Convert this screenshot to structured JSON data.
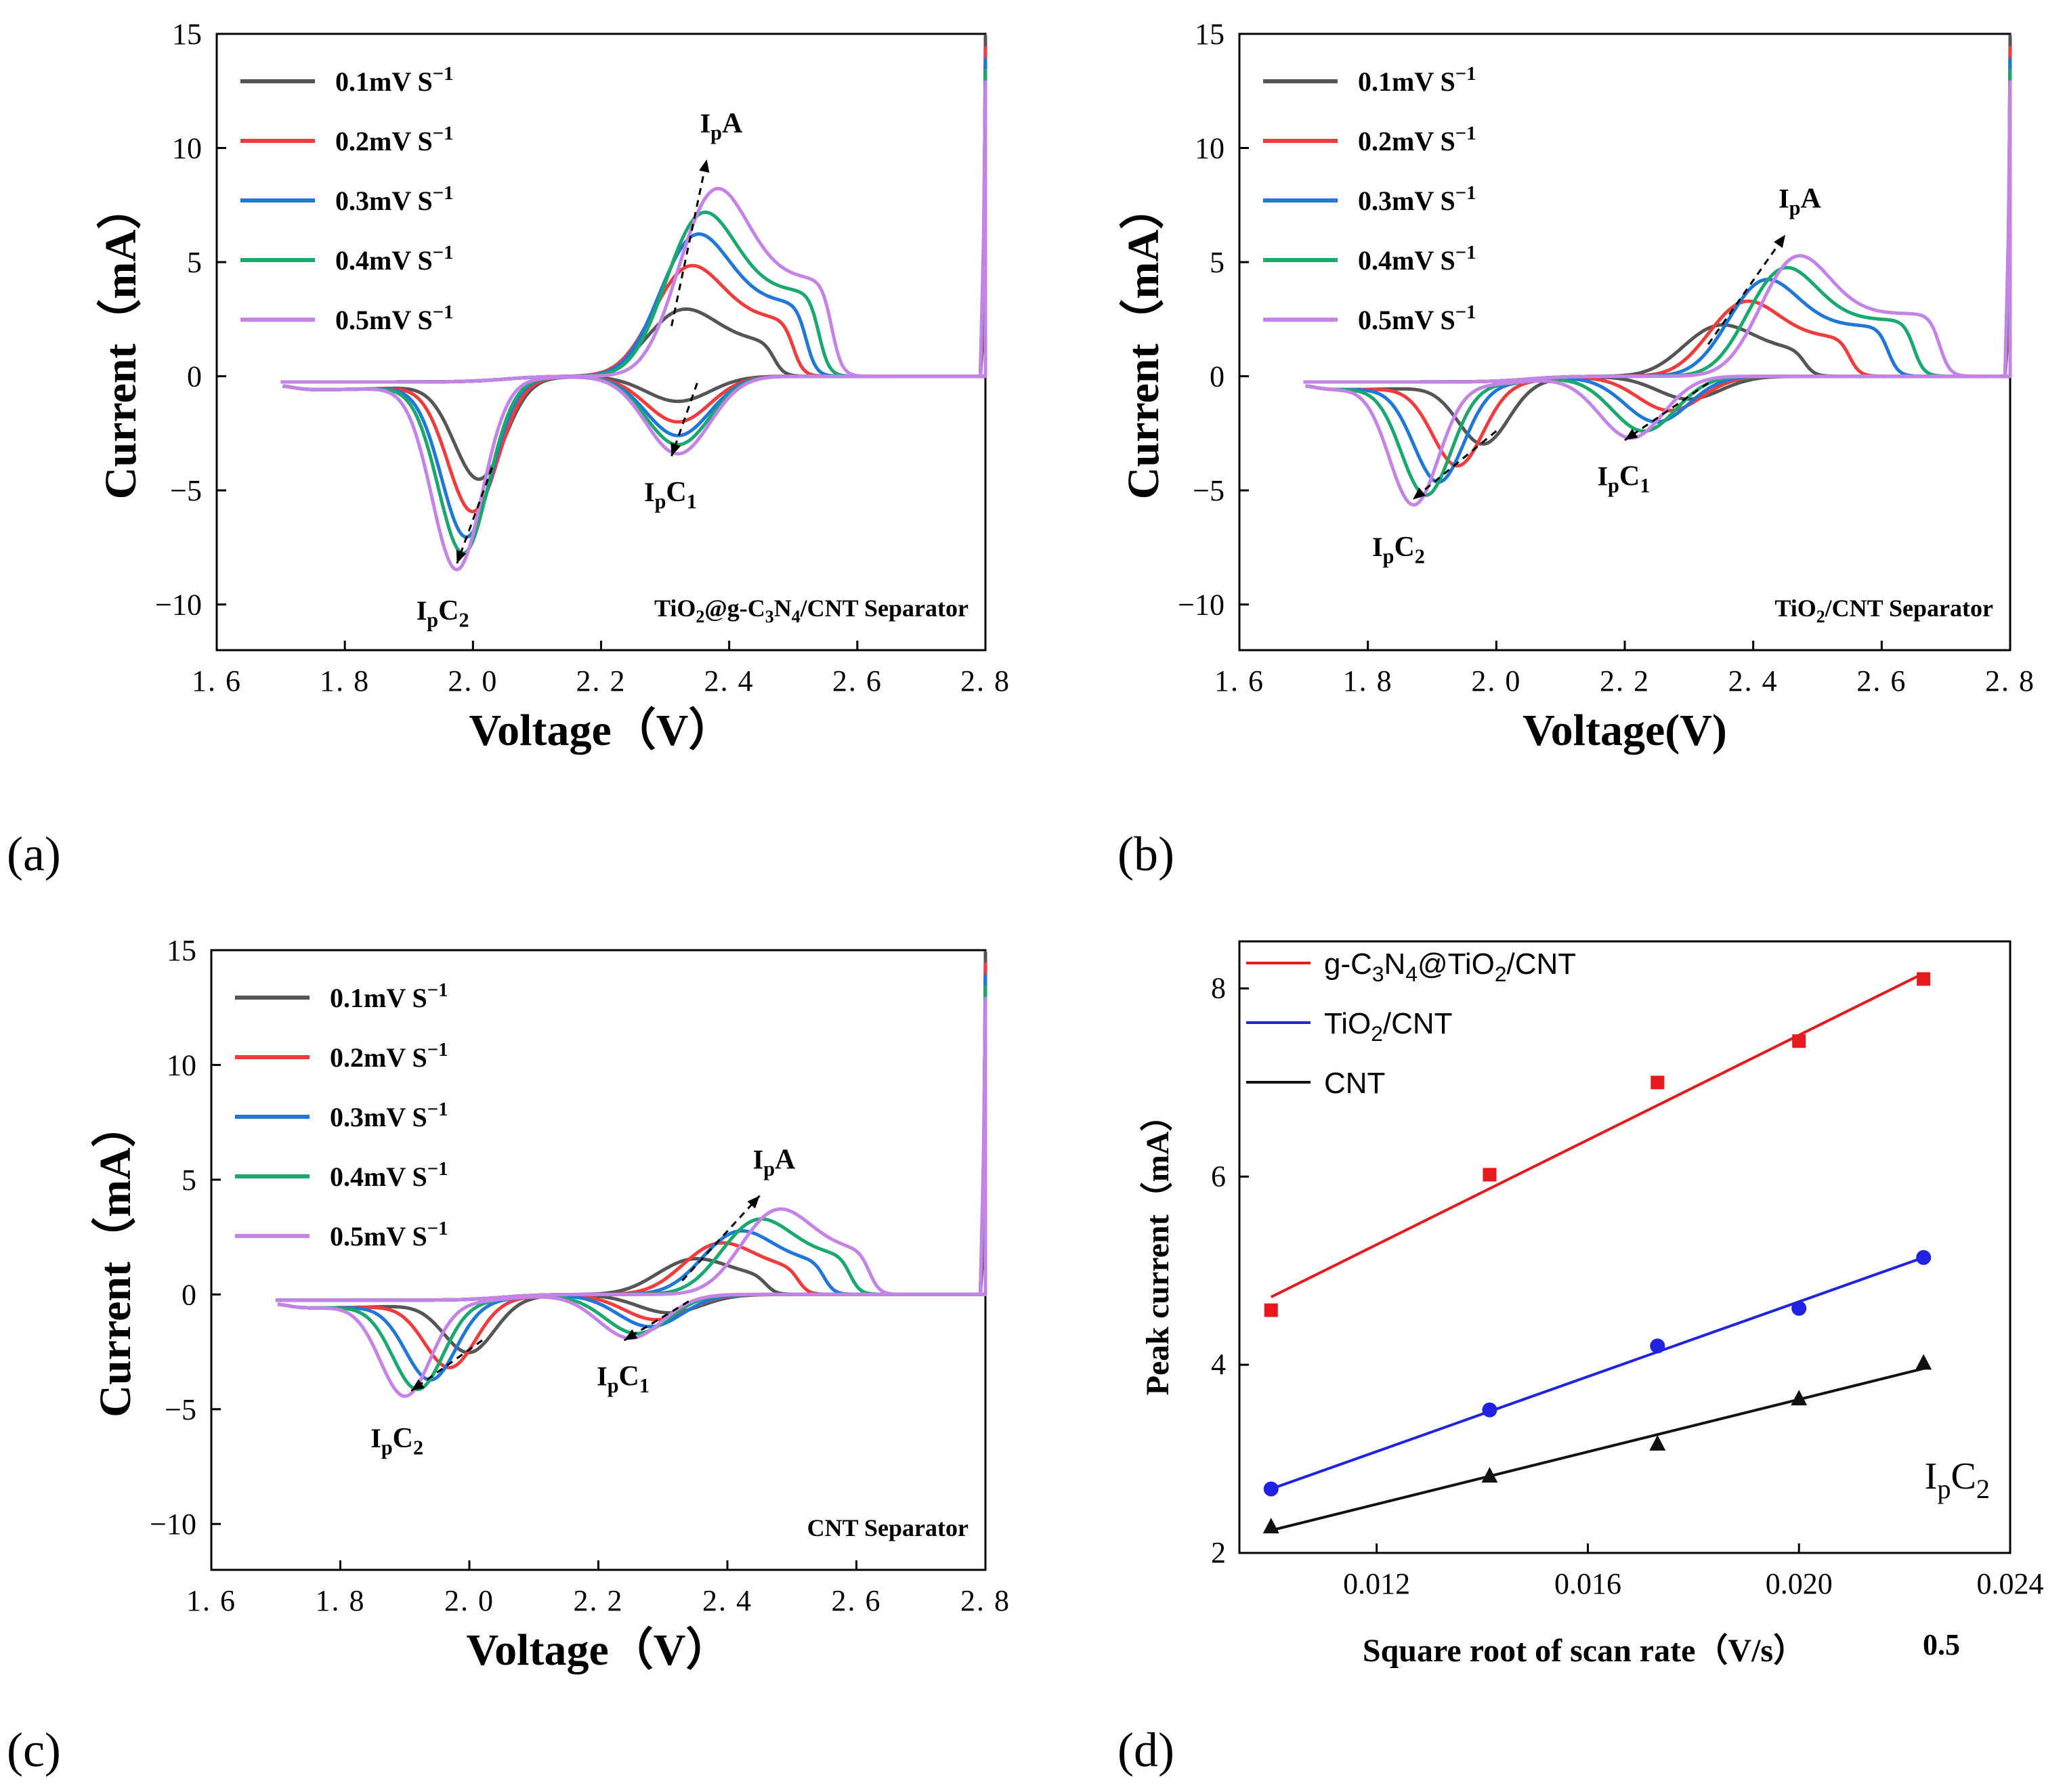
{
  "figure": {
    "panel_labels": [
      "(a)",
      "(b)",
      "(c)",
      "(d)"
    ]
  },
  "chart_data": [
    {
      "id": "a",
      "type": "line",
      "title": "",
      "xlabel": "Voltage（V）",
      "ylabel": "Current（mA）",
      "xlim": [
        1.6,
        2.8
      ],
      "ylim": [
        -12,
        15
      ],
      "xticks": [
        "1.6",
        "1.8",
        "2.0",
        "2.2",
        "2.4",
        "2.6",
        "2.8"
      ],
      "yticks": [
        "-10",
        "-5",
        "0",
        "5",
        "10",
        "15"
      ],
      "annotation": "TiO2@g-C3N4/CNT Separator",
      "peak_labels": {
        "anodic": "IpA",
        "cathodic1": "IpC1",
        "cathodic2": "IpC2"
      },
      "peak_positions": {
        "IpA": {
          "x": 2.365,
          "y": 9.5
        },
        "IpC1": {
          "x": 2.32,
          "y": -3.4
        },
        "IpC2": {
          "x": 1.975,
          "y": -8.0
        }
      },
      "series": [
        {
          "name": "0.1mV S-1",
          "color": "#555555",
          "pA": 3.4,
          "vA": 2.31,
          "pC1": -1.1,
          "vC1": 2.32,
          "pC2": -4.2,
          "vC2": 2.01,
          "endA": 2.47
        },
        {
          "name": "0.2mV S-1",
          "color": "#f03c3c",
          "pA": 5.6,
          "vA": 2.32,
          "pC1": -2.0,
          "vC1": 2.32,
          "pC2": -5.6,
          "vC2": 2.0,
          "endA": 2.5
        },
        {
          "name": "0.3mV S-1",
          "color": "#1f78d8",
          "pA": 7.2,
          "vA": 2.33,
          "pC1": -2.6,
          "vC1": 2.32,
          "pC2": -6.7,
          "vC2": 1.99,
          "endA": 2.52
        },
        {
          "name": "0.4mV S-1",
          "color": "#19a86d",
          "pA": 8.3,
          "vA": 2.34,
          "pC1": -3.0,
          "vC1": 2.32,
          "pC2": -7.4,
          "vC2": 1.985,
          "endA": 2.54
        },
        {
          "name": "0.5mV S-1",
          "color": "#c583e8",
          "pA": 9.5,
          "vA": 2.36,
          "pC1": -3.4,
          "vC1": 2.32,
          "pC2": -8.1,
          "vC2": 1.975,
          "endA": 2.56
        }
      ]
    },
    {
      "id": "b",
      "type": "line",
      "title": "",
      "xlabel": "Voltage(V)",
      "ylabel": "Current（mA）",
      "xlim": [
        1.6,
        2.8
      ],
      "ylim": [
        -12,
        15
      ],
      "xticks": [
        "1.6",
        "1.8",
        "2.0",
        "2.2",
        "2.4",
        "2.6",
        "2.8"
      ],
      "yticks": [
        "-10",
        "-5",
        "0",
        "5",
        "10",
        "15"
      ],
      "annotation": "TiO2/CNT Separator",
      "peak_labels": {
        "anodic": "IpA",
        "cathodic1": "IpC1",
        "cathodic2": "IpC2"
      },
      "peak_positions": {
        "IpA": {
          "x": 2.45,
          "y": 6.2
        },
        "IpC1": {
          "x": 2.21,
          "y": -2.7
        },
        "IpC2": {
          "x": 1.87,
          "y": -5.2
        }
      },
      "series": [
        {
          "name": "0.1mV S-1",
          "color": "#555555",
          "pA": 2.6,
          "vA": 2.33,
          "pC1": -1.0,
          "vC1": 2.3,
          "pC2": -2.6,
          "vC2": 1.98,
          "endA": 2.48
        },
        {
          "name": "0.2mV S-1",
          "color": "#f03c3c",
          "pA": 3.8,
          "vA": 2.37,
          "pC1": -1.5,
          "vC1": 2.27,
          "pC2": -3.5,
          "vC2": 1.94,
          "endA": 2.55
        },
        {
          "name": "0.3mV S-1",
          "color": "#1f78d8",
          "pA": 4.9,
          "vA": 2.4,
          "pC1": -2.0,
          "vC1": 2.25,
          "pC2": -4.2,
          "vC2": 1.91,
          "endA": 2.61
        },
        {
          "name": "0.4mV S-1",
          "color": "#19a86d",
          "pA": 5.5,
          "vA": 2.43,
          "pC1": -2.4,
          "vC1": 2.23,
          "pC2": -4.8,
          "vC2": 1.89,
          "endA": 2.65
        },
        {
          "name": "0.5mV S-1",
          "color": "#c583e8",
          "pA": 6.1,
          "vA": 2.45,
          "pC1": -2.7,
          "vC1": 2.21,
          "pC2": -5.3,
          "vC2": 1.87,
          "endA": 2.69
        }
      ]
    },
    {
      "id": "c",
      "type": "line",
      "title": "",
      "xlabel": "Voltage（V）",
      "ylabel": "Current（mA）",
      "xlim": [
        1.6,
        2.8
      ],
      "ylim": [
        -12,
        15
      ],
      "xticks": [
        "1.6",
        "1.8",
        "2.0",
        "2.2",
        "2.4",
        "2.6",
        "2.8"
      ],
      "yticks": [
        "-10",
        "-5",
        "0",
        "5",
        "10",
        "15"
      ],
      "annotation": "CNT Separator",
      "peak_labels": {
        "anodic": "IpA",
        "cathodic1": "IpC1",
        "cathodic2": "IpC2"
      },
      "peak_positions": {
        "IpA": {
          "x": 2.45,
          "y": 4.3
        },
        "IpC1": {
          "x": 2.25,
          "y": -1.9
        },
        "IpC2": {
          "x": 1.91,
          "y": -4.0
        }
      },
      "series": [
        {
          "name": "0.1mV S-1",
          "color": "#555555",
          "pA": 1.8,
          "vA": 2.33,
          "pC1": -0.8,
          "vC1": 2.31,
          "pC2": -2.2,
          "vC2": 2.0,
          "endA": 2.46
        },
        {
          "name": "0.2mV S-1",
          "color": "#f03c3c",
          "pA": 2.6,
          "vA": 2.37,
          "pC1": -1.1,
          "vC1": 2.29,
          "pC2": -2.8,
          "vC2": 1.97,
          "endA": 2.51
        },
        {
          "name": "0.3mV S-1",
          "color": "#1f78d8",
          "pA": 3.2,
          "vA": 2.4,
          "pC1": -1.4,
          "vC1": 2.28,
          "pC2": -3.3,
          "vC2": 1.94,
          "endA": 2.55
        },
        {
          "name": "0.4mV S-1",
          "color": "#19a86d",
          "pA": 3.8,
          "vA": 2.43,
          "pC1": -1.7,
          "vC1": 2.26,
          "pC2": -3.7,
          "vC2": 1.92,
          "endA": 2.59
        },
        {
          "name": "0.5mV S-1",
          "color": "#c583e8",
          "pA": 4.3,
          "vA": 2.46,
          "pC1": -1.9,
          "vC1": 2.25,
          "pC2": -4.0,
          "vC2": 1.9,
          "endA": 2.62
        }
      ]
    },
    {
      "id": "d",
      "type": "scatter",
      "title": "",
      "xlabel": "Square root of scan rate（V/s）",
      "xlabel_suffix": "0.5",
      "ylabel": "Peak current（mA）",
      "xlim": [
        0.0094,
        0.024
      ],
      "ylim": [
        2,
        8.5
      ],
      "xticks": [
        "0.012",
        "0.016",
        "0.020",
        "0.024"
      ],
      "xtick_values": [
        0.012,
        0.016,
        0.02,
        0.024
      ],
      "yticks": [
        "2",
        "4",
        "6",
        "8"
      ],
      "ytick_values": [
        2,
        4,
        6,
        8
      ],
      "annotation": "IpC2",
      "x": [
        0.01,
        0.01414,
        0.01732,
        0.02,
        0.02236
      ],
      "series": [
        {
          "name": "g-C3N4@TiO2/CNT",
          "color": "#e8191c",
          "marker": "square",
          "values": [
            4.58,
            6.02,
            7.0,
            7.44,
            8.1
          ],
          "fit": [
            4.72,
            8.16
          ]
        },
        {
          "name": "TiO2/CNT",
          "color": "#1f22e0",
          "marker": "circle",
          "values": [
            2.68,
            3.52,
            4.2,
            4.6,
            5.14
          ],
          "fit": [
            2.68,
            5.14
          ]
        },
        {
          "name": "CNT",
          "color": "#111111",
          "marker": "triangle",
          "values": [
            2.28,
            2.82,
            3.16,
            3.64,
            4.02
          ],
          "fit": [
            2.24,
            3.96
          ]
        }
      ]
    }
  ]
}
